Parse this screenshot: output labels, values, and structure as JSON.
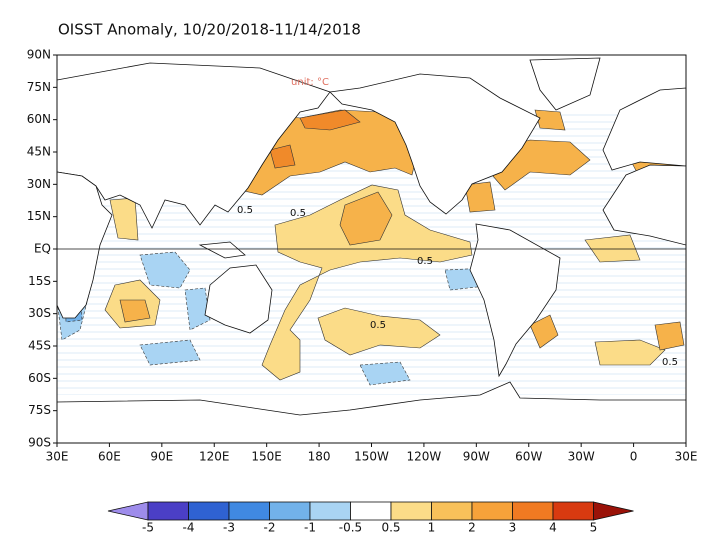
{
  "title": "OISST Anomaly, 10/20/2018-11/14/2018",
  "unit_label": "unit: °C",
  "map": {
    "lat_labels": [
      "90N",
      "75N",
      "60N",
      "45N",
      "30N",
      "15N",
      "EQ",
      "15S",
      "30S",
      "45S",
      "60S",
      "75S",
      "90S"
    ],
    "lon_labels": [
      "30E",
      "60E",
      "90E",
      "120E",
      "150E",
      "180",
      "150W",
      "120W",
      "90W",
      "60W",
      "30W",
      "0",
      "30E"
    ],
    "contour_labels": [
      0.5,
      0.5,
      0.5,
      0.5,
      0.5
    ]
  },
  "colorbar": {
    "levels": [
      -5,
      -4,
      -3,
      -2,
      -1,
      -0.5,
      0.5,
      1,
      2,
      3,
      4,
      5
    ],
    "colors": [
      "#9e8ceb",
      "#4b3fc6",
      "#2f62d2",
      "#4089e2",
      "#72b2ea",
      "#a9d4f3",
      "#ffffff",
      "#fbdc88",
      "#f8c15a",
      "#f6a23a",
      "#f07a22",
      "#d83a10",
      "#9a1208"
    ]
  }
}
